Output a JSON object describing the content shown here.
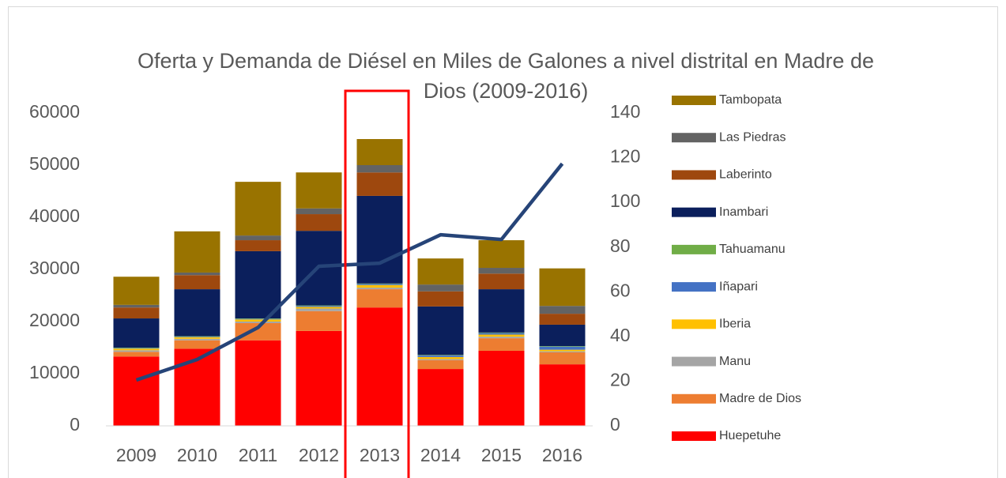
{
  "chart_data": {
    "type": "bar",
    "title": "Oferta y Demanda de Diésel en Miles de Galones a nivel distrital en Madre de Dios (2009-2016)",
    "stacked": true,
    "categories": [
      "2009",
      "2010",
      "2011",
      "2012",
      "2013",
      "2014",
      "2015",
      "2016"
    ],
    "series": [
      {
        "name": "Huepetuhe",
        "color": "#ff0000",
        "values": [
          13300,
          14800,
          16400,
          18200,
          22700,
          10900,
          14400,
          11800
        ]
      },
      {
        "name": "Madre de Dios",
        "color": "#ed7d31",
        "values": [
          900,
          1600,
          3300,
          3800,
          3500,
          1700,
          2400,
          2300
        ]
      },
      {
        "name": "Manu",
        "color": "#a5a5a5",
        "values": [
          300,
          300,
          300,
          500,
          300,
          200,
          300,
          200
        ]
      },
      {
        "name": "Iberia",
        "color": "#ffc000",
        "values": [
          300,
          300,
          400,
          300,
          500,
          400,
          400,
          300
        ]
      },
      {
        "name": "Iñapari",
        "color": "#4472c4",
        "values": [
          100,
          100,
          100,
          200,
          200,
          300,
          300,
          600
        ]
      },
      {
        "name": "Tahuamanu",
        "color": "#70ad47",
        "values": [
          100,
          100,
          100,
          100,
          100,
          100,
          100,
          100
        ]
      },
      {
        "name": "Inambari",
        "color": "#0b1f5c",
        "values": [
          5600,
          9000,
          12900,
          14300,
          16800,
          9300,
          8300,
          4100
        ]
      },
      {
        "name": "Laberinto",
        "color": "#9e480e",
        "values": [
          2100,
          2700,
          2100,
          3200,
          4500,
          2900,
          3000,
          2100
        ]
      },
      {
        "name": "Las Piedras",
        "color": "#636363",
        "values": [
          500,
          500,
          900,
          1100,
          1400,
          1300,
          1100,
          1500
        ]
      },
      {
        "name": "Tambopata",
        "color": "#997300",
        "values": [
          5400,
          7900,
          10300,
          6900,
          5000,
          5000,
          5300,
          7200
        ]
      },
      {
        "type": "line",
        "axis": "y2",
        "color": "#264478",
        "values": [
          20.5,
          29.7,
          44,
          71.4,
          72.8,
          85.5,
          83.4,
          117.3
        ]
      }
    ],
    "ylim": [
      0,
      60000
    ],
    "yticks": [
      0,
      10000,
      20000,
      30000,
      40000,
      50000,
      60000
    ],
    "y2lim": [
      0,
      140
    ],
    "y2ticks": [
      0,
      20,
      40,
      60,
      80,
      100,
      120,
      140
    ],
    "legend": "right"
  }
}
